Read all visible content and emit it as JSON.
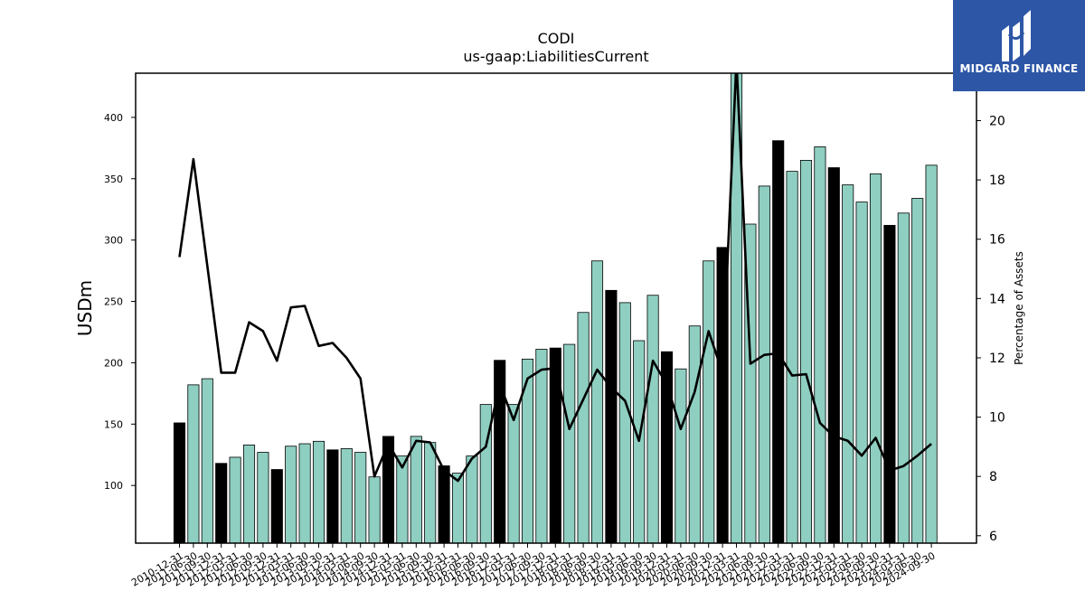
{
  "chart_data": {
    "type": "bar",
    "title": "CODI",
    "subtitle": "us-gaap:LiabilitiesCurrent",
    "ylabel": "USDm",
    "y2label": "Percentage of Assets",
    "ylim": [
      53,
      436
    ],
    "y2lim": [
      5.75,
      21.6
    ],
    "yticks": [
      100,
      150,
      200,
      250,
      300,
      350,
      400
    ],
    "y2ticks": [
      6,
      8,
      10,
      12,
      14,
      16,
      18,
      20
    ],
    "categories": [
      "2010-12-31",
      "2011-06-30",
      "2011-09-30",
      "2011-12-31",
      "2012-03-31",
      "2012-06-30",
      "2012-09-30",
      "2012-12-31",
      "2013-03-31",
      "2013-06-30",
      "2013-09-30",
      "2013-12-31",
      "2014-03-31",
      "2014-06-30",
      "2014-09-30",
      "2014-12-31",
      "2015-03-31",
      "2015-06-30",
      "2015-09-30",
      "2015-12-31",
      "2016-03-31",
      "2016-06-30",
      "2016-09-30",
      "2016-12-31",
      "2017-03-31",
      "2017-06-30",
      "2017-09-30",
      "2017-12-31",
      "2018-03-31",
      "2018-06-30",
      "2018-09-30",
      "2018-12-31",
      "2019-03-31",
      "2019-06-30",
      "2019-09-30",
      "2019-12-31",
      "2020-03-31",
      "2020-06-30",
      "2020-09-30",
      "2020-12-31",
      "2021-03-31",
      "2021-06-30",
      "2021-09-30",
      "2021-12-31",
      "2022-03-31",
      "2022-06-30",
      "2022-09-30",
      "2022-12-31",
      "2023-03-31",
      "2023-06-30",
      "2023-09-30",
      "2023-12-31",
      "2024-03-31",
      "2024-06-30",
      "2024-09-30"
    ],
    "series": [
      {
        "kind": "bar",
        "values": [
          151,
          182,
          187,
          118,
          123,
          133,
          127,
          113,
          132,
          134,
          136,
          129,
          130,
          127,
          107,
          140,
          124,
          140,
          135,
          116,
          110,
          124,
          166,
          202,
          166,
          203,
          211,
          212,
          215,
          241,
          283,
          259,
          249,
          218,
          255,
          209,
          195,
          230,
          283,
          294,
          448,
          313,
          344,
          381,
          356,
          365,
          376,
          359,
          345,
          331,
          354,
          312,
          322,
          334,
          361
        ],
        "year_end": [
          true,
          false,
          false,
          true,
          false,
          false,
          false,
          true,
          false,
          false,
          false,
          true,
          false,
          false,
          false,
          true,
          false,
          false,
          false,
          true,
          false,
          false,
          false,
          true,
          false,
          false,
          false,
          true,
          false,
          false,
          false,
          true,
          false,
          false,
          false,
          true,
          false,
          false,
          false,
          true,
          false,
          false,
          false,
          true,
          false,
          false,
          false,
          true,
          false,
          false,
          false,
          true,
          false,
          false,
          false
        ]
      },
      {
        "kind": "line",
        "axis": "right",
        "values": [
          15.4,
          18.7,
          15.1,
          11.5,
          11.5,
          13.2,
          12.9,
          11.9,
          13.7,
          13.75,
          12.4,
          12.5,
          12.0,
          11.3,
          8.0,
          9.1,
          8.3,
          9.2,
          9.15,
          8.2,
          7.85,
          8.6,
          9.0,
          11.1,
          9.9,
          11.3,
          11.6,
          11.65,
          9.6,
          10.6,
          11.6,
          11.0,
          10.55,
          9.2,
          11.9,
          11.1,
          9.6,
          10.85,
          12.9,
          11.5,
          22.0,
          11.8,
          12.1,
          12.15,
          11.4,
          11.45,
          9.8,
          9.35,
          9.2,
          8.7,
          9.3,
          8.2,
          8.35,
          8.7,
          9.1
        ]
      }
    ],
    "colors": {
      "bar": "#8ecfc1",
      "bar_year_end": "#000000",
      "line": "#000000"
    },
    "grid": false
  },
  "logo": {
    "text": "MIDGARD FINANCE",
    "bg": "#2d56a6"
  }
}
